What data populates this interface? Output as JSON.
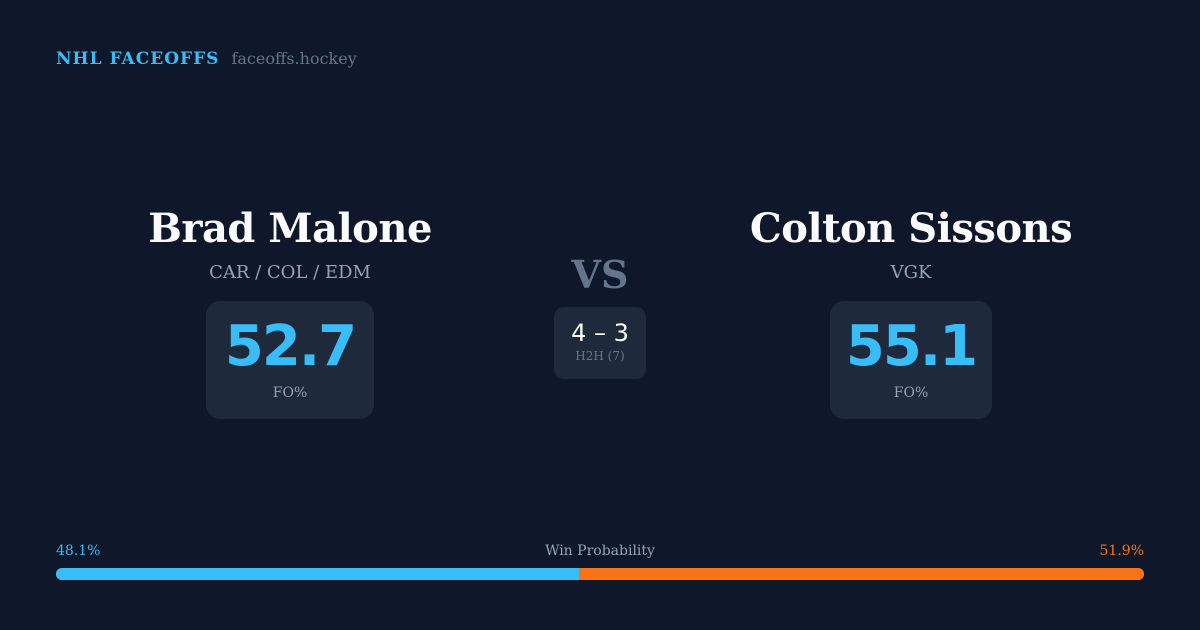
{
  "brand": {
    "title": "NHL FACEOFFS",
    "domain": "faceoffs.hockey"
  },
  "player1": {
    "name": "Brad Malone",
    "teams": "CAR / COL / EDM",
    "fo_pct": "52.7",
    "fo_label": "FO%"
  },
  "player2": {
    "name": "Colton Sissons",
    "teams": "VGK",
    "fo_pct": "55.1",
    "fo_label": "FO%"
  },
  "vs": "VS",
  "h2h": {
    "score": "4 – 3",
    "label": "H2H (7)"
  },
  "win_probability": {
    "label": "Win Probability",
    "p1_label": "48.1%",
    "p2_label": "51.9%",
    "p1": 48.1,
    "p2": 51.9
  },
  "colors": {
    "player1": "#38bdf8",
    "player2": "#f97316",
    "background": "#0f172a"
  }
}
